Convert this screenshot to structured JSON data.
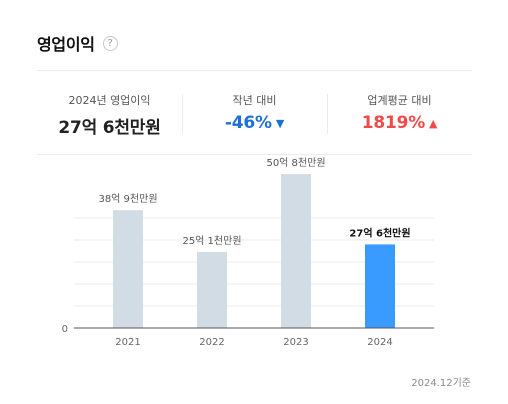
{
  "header": {
    "title": "영업이익",
    "help_icon": "?"
  },
  "stats": [
    {
      "label": "2024년 영업이익",
      "value": "27억 6천만원",
      "arrow": "",
      "color": "#111111"
    },
    {
      "label": "작년 대비",
      "value": "-46%",
      "arrow": "▼",
      "color": "#1e6fd6"
    },
    {
      "label": "업계평균 대비",
      "value": "1819%",
      "arrow": "▲",
      "color": "#f04b4b"
    }
  ],
  "chart_data": {
    "type": "bar",
    "categories": [
      "2021",
      "2022",
      "2023",
      "2024"
    ],
    "values": [
      38.9,
      25.1,
      50.8,
      27.6
    ],
    "labels": [
      "38억 9천만원",
      "25억 1천만원",
      "50억 8천만원",
      "27억 6천만원"
    ],
    "ytick_label": "0",
    "highlight_index": 3,
    "colors": {
      "bar": "#d2dce5",
      "highlight": "#3a9bff",
      "axis": "#555555",
      "grid": "#ebebeb"
    }
  },
  "footer": {
    "note": "2024.12기준"
  }
}
